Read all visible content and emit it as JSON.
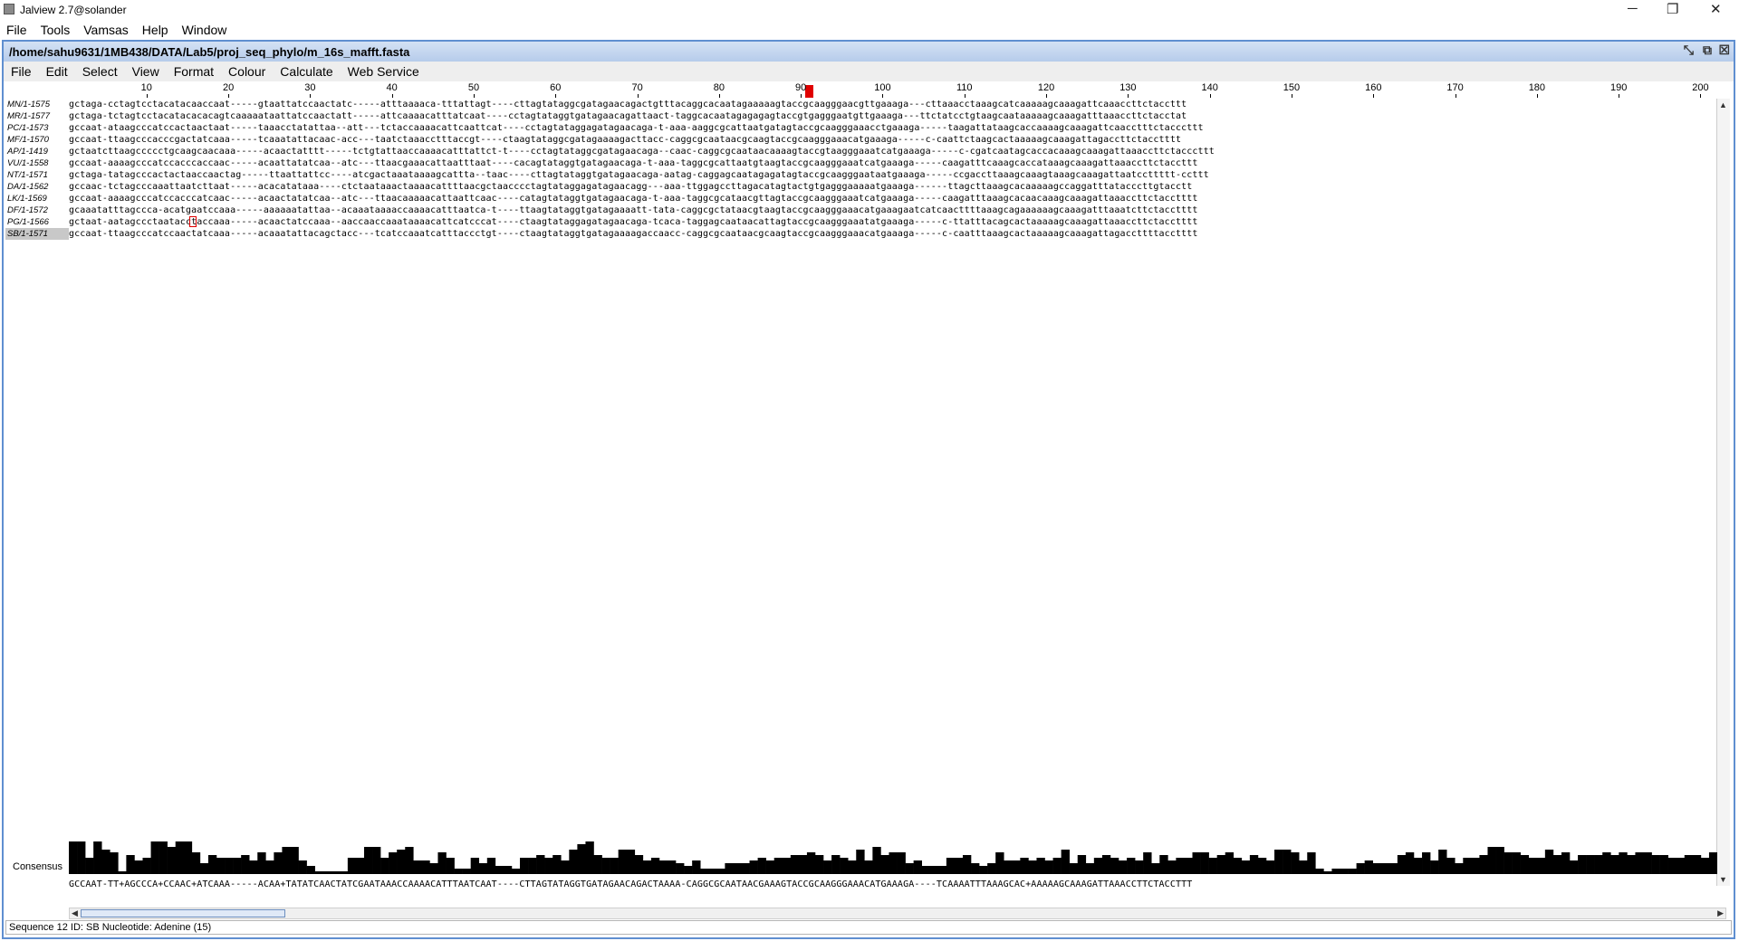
{
  "window": {
    "title": "Jalview 2.7@solander",
    "minimize_glyph": "─",
    "restore_glyph": "❐",
    "close_glyph": "✕"
  },
  "main_menu": [
    "File",
    "Tools",
    "Vamsas",
    "Help",
    "Window"
  ],
  "frame": {
    "title": "/home/sahu9631/1MB438/DATA/Lab5/proj_seq_phylo/m_16s_mafft.fasta",
    "menu": [
      "File",
      "Edit",
      "Select",
      "View",
      "Format",
      "Colour",
      "Calculate",
      "Web Service"
    ],
    "ctrl_glyphs": [
      "⤡",
      "⧉",
      "☒"
    ]
  },
  "ruler": {
    "labels": [
      "10",
      "20",
      "30",
      "40",
      "50",
      "60",
      "70",
      "80",
      "90",
      "100",
      "110",
      "120",
      "130",
      "140",
      "150",
      "160",
      "170",
      "180",
      "190",
      "200"
    ],
    "cursor_column": 91
  },
  "sequences": [
    {
      "name": "MN/1-1575",
      "residues": "gctaga-cctagtcctacatacaaccaat-----gtaattatccaactatc-----atttaaaaca-tttattagt----cttagtataggcgatagaacagactgtttacaggcacaatagaaaaagtaccgcaagggaacgttgaaaga---cttaaacctaaagcatcaaaaagcaaagattcaaaccttctaccttt"
    },
    {
      "name": "MR/1-1577",
      "residues": "gctaga-tctagtcctacatacacacagtcaaaaataattatccaactatt-----attcaaaacatttatcaat----cctagtataggtgatagaacagattaact-taggcacaatagagagagtaccgtgagggaatgttgaaaga---ttctatcctgtaagcaataaaaagcaaagatttaaaccttctacctat"
    },
    {
      "name": "PC/1-1573",
      "residues": "gccaat-ataagcccatccactaactaat-----taaacctatattaa--att---tctaccaaaacattcaattcat----cctagtataggagatagaacaga-t-aaa-aaggcgcattaatgatagtaccgcaagggaaacctgaaaga-----taagattataagcaccaaaagcaaagattcaacctttctacccttt"
    },
    {
      "name": "MF/1-1570",
      "residues": "gccaat-ttaagcccacccgactatcaaa-----tcaaatattacaac-acc---taatctaaacctttaccgt----ctaagtataggcgatagaaaagacttacc-caggcgcaataacgcaagtaccgcaagggaaacatgaaaga-----c-caattctaagcactaaaaagcaaagattagaccttctacctttt"
    },
    {
      "name": "AP/1-1419",
      "residues": "gctaatcttaagccccctgcaagcaacaaa-----acaactatttt-----tctgtattaaccaaaacatttattct-t----cctagtataggcgatagaacaga--caac-caggcgcaataacaaaagtaccgtaagggaaatcatgaaaga-----c-cgatcaatagcaccacaaagcaaagattaaaccttctacccttt"
    },
    {
      "name": "VU/1-1558",
      "residues": "gccaat-aaaagcccatccacccaccaac-----acaattatatcaa--atc---ttaacgaaacattaatttaat----cacagtataggtgatagaacaga-t-aaa-taggcgcattaatgtaagtaccgcaagggaaatcatgaaaga-----caagatttcaaagcaccataaagcaaagattaaaccttctaccttt"
    },
    {
      "name": "NT/1-1571",
      "residues": "gctaga-tatagcccactactaaccaactag-----ttaattattcc----atcgactaaataaaagcattta--taac----cttagtataggtgatagaacaga-aatag-caggagcaatagagatagtaccgcaagggaataatgaaaga-----ccgaccttaaagcaaagtaaagcaaagattaatccttttt-ccttt"
    },
    {
      "name": "DA/1-1562",
      "residues": "gccaac-tctagcccaaattaatcttaat-----acacatataaa----ctctaataaactaaaacattttaacgctaacccctagtataggagatagaacagg---aaa-ttggagccttagacatagtactgtgagggaaaaatgaaaga------ttagcttaaagcacaaaaagccaggatttatacccttgtacctt"
    },
    {
      "name": "LK/1-1569",
      "residues": "gccaat-aaaagcccatccacccatcaac-----acaactatatcaa--atc---ttaacaaaaacattaattcaac----catagtataggtgatagaacaga-t-aaa-taggcgcataacgttagtaccgcaagggaaatcatgaaaga-----caagatttaaagcacaacaaagcaaagattaaaccttctacctttt"
    },
    {
      "name": "DF/1-1572",
      "residues": "gcaaatatttagccca-acatgaatccaaa-----aaaaaatattaa--acaaataaaaccaaaacatttaatca-t----ttaagtataggtgatagaaaatt-tata-caggcgctataacgtaagtaccgcaagggaaacatgaaagaatcatcaacttttaaagcagaaaaaagcaaagatttaaatcttctacctttt"
    },
    {
      "name": "PG/1-1566",
      "residues": "gctaat-aatagccctaatacctaccaaa-----acaactatccaaa--aaccaaccaaataaaacattcatcccat----ctaagtataggagatagaacaga-tcaca-taggagcaataacattagtaccgcaagggaaatatgaaaga-----c-ttatttacagcactaaaaagcaaagattaaaccttctacctttt"
    },
    {
      "name": "SB/1-1571",
      "residues": "gccaat-ttaagcccatccaactatcaaa-----acaaatattacagctacc---tcatccaaatcatttaccctgt----ctaagtataggtgatagaaaagaccaacc-caggcgcaataacgcaagtaccgcaagggaaacatgaaaga-----c-caatttaaagcactaaaaagcaaagattagaccttttacctttt"
    }
  ],
  "selected_sequence": "SB/1-1571",
  "consensus": {
    "label": "Consensus",
    "sequence": "GCCAAT-TT+AGCCCA+CCAAC+ATCAAA-----ACAA+TATATCAACTATCGAATAAACCAAAACATTTAATCAAT----CTTAGTATAGGTGATAGAACAGACTAAAA-CAGGCGCAATAACGAAAGTACCGCAAGGGAAACATGAAAGA----TCAAAATTTAAAGCAC+AAAAAGCAAAGATTAAACCTTCTACCTTT",
    "bar_color": "#000000"
  },
  "status_text": "Sequence 12 ID: SB Nucleotide: Adenine (15)",
  "colors": {
    "frame_border": "#5f8fd0",
    "cursor": "#e00000",
    "selected_name_bg": "#c8c8c8"
  }
}
